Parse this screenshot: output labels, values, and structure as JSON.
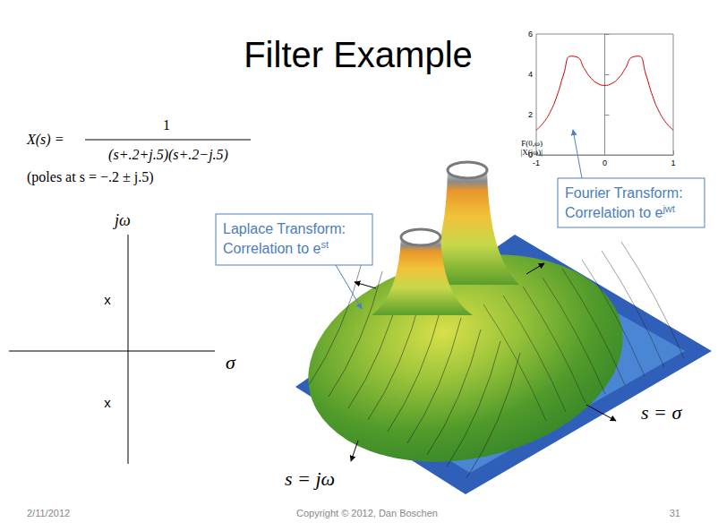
{
  "title": "Filter Example",
  "transfer_function": {
    "lhs": "X(s) =",
    "numerator": "1",
    "denominator": "(s+.2+j.5)(s+.2−j.5)",
    "note": "(poles at  s = −.2 ± j.5)"
  },
  "pole_plot": {
    "x_label": "σ",
    "y_label": "jω",
    "poles": [
      {
        "re": -0.2,
        "im": 0.5,
        "marker": "x"
      },
      {
        "re": -0.2,
        "im": -0.5,
        "marker": "x"
      }
    ]
  },
  "surface": {
    "axis_labels": {
      "sigma": "s = σ",
      "jw": "s = jω"
    }
  },
  "callouts": [
    {
      "lines": [
        "Laplace Transform:",
        "Correlation to e"
      ],
      "superscript": "st"
    },
    {
      "lines": [
        "Fourier Transform:",
        "Correlation to e"
      ],
      "superscript": "jwt"
    }
  ],
  "chart_data": {
    "type": "line",
    "y_label": [
      "F(0,ω)",
      "|X(jω)|"
    ],
    "x": [
      -1,
      -0.9,
      -0.8,
      -0.7,
      -0.6,
      -0.5,
      -0.4,
      -0.3,
      -0.2,
      -0.1,
      0,
      0.1,
      0.2,
      0.3,
      0.4,
      0.5,
      0.6,
      0.7,
      0.8,
      0.9,
      1
    ],
    "values": [
      1.23,
      1.58,
      2.11,
      2.91,
      4.0,
      4.9,
      4.85,
      4.29,
      3.81,
      3.54,
      3.45,
      3.54,
      3.81,
      4.29,
      4.85,
      4.9,
      4.0,
      2.91,
      2.11,
      1.58,
      1.23
    ],
    "color": "#cc0000",
    "xlim": [
      -1,
      1
    ],
    "xticks": [
      -1,
      0,
      1
    ],
    "ylim": [
      0,
      6
    ],
    "yticks": [
      0,
      2,
      4,
      6
    ],
    "grid": false
  },
  "footer": {
    "date": "2/11/2012",
    "copyright": "Copyright © 2012, Dan Boschen",
    "page": "31"
  }
}
